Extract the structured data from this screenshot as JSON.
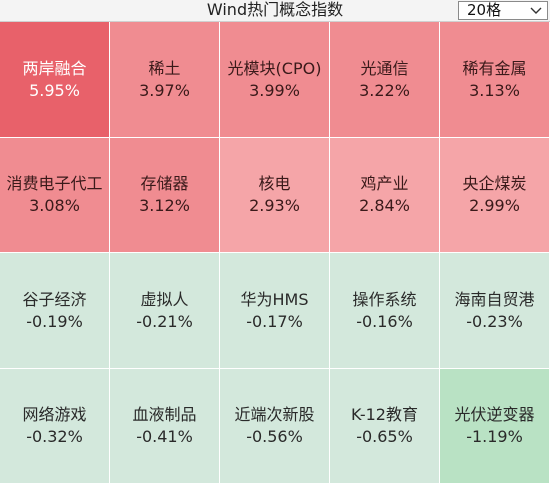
{
  "header": {
    "title": "Wind热门概念指数",
    "count_select": "20格"
  },
  "colors": {
    "strong_red": "#e8616a",
    "red": "#f08c91",
    "light_red": "#f5a5a8",
    "light_green": "#d3e8dc",
    "green": "#b9e2c4"
  },
  "tiles": [
    {
      "name": "两岸融合",
      "change": "5.95%",
      "color": "#e8616a"
    },
    {
      "name": "稀土",
      "change": "3.97%",
      "color": "#f08c91"
    },
    {
      "name": "光模块(CPO)",
      "change": "3.99%",
      "color": "#f08c91"
    },
    {
      "name": "光通信",
      "change": "3.22%",
      "color": "#f08c91"
    },
    {
      "name": "稀有金属",
      "change": "3.13%",
      "color": "#f08c91"
    },
    {
      "name": "消费电子代工",
      "change": "3.08%",
      "color": "#f08c91"
    },
    {
      "name": "存储器",
      "change": "3.12%",
      "color": "#f08c91"
    },
    {
      "name": "核电",
      "change": "2.93%",
      "color": "#f5a5a8"
    },
    {
      "name": "鸡产业",
      "change": "2.84%",
      "color": "#f5a5a8"
    },
    {
      "name": "央企煤炭",
      "change": "2.99%",
      "color": "#f5a5a8"
    },
    {
      "name": "谷子经济",
      "change": "-0.19%",
      "color": "#d3e8dc"
    },
    {
      "name": "虚拟人",
      "change": "-0.21%",
      "color": "#d3e8dc"
    },
    {
      "name": "华为HMS",
      "change": "-0.17%",
      "color": "#d3e8dc"
    },
    {
      "name": "操作系统",
      "change": "-0.16%",
      "color": "#d3e8dc"
    },
    {
      "name": "海南自贸港",
      "change": "-0.23%",
      "color": "#d3e8dc"
    },
    {
      "name": "网络游戏",
      "change": "-0.32%",
      "color": "#d3e8dc"
    },
    {
      "name": "血液制品",
      "change": "-0.41%",
      "color": "#d3e8dc"
    },
    {
      "name": "近端次新股",
      "change": "-0.56%",
      "color": "#d3e8dc"
    },
    {
      "name": "K-12教育",
      "change": "-0.65%",
      "color": "#d3e8dc"
    },
    {
      "name": "光伏逆变器",
      "change": "-1.19%",
      "color": "#b9e2c4"
    }
  ]
}
